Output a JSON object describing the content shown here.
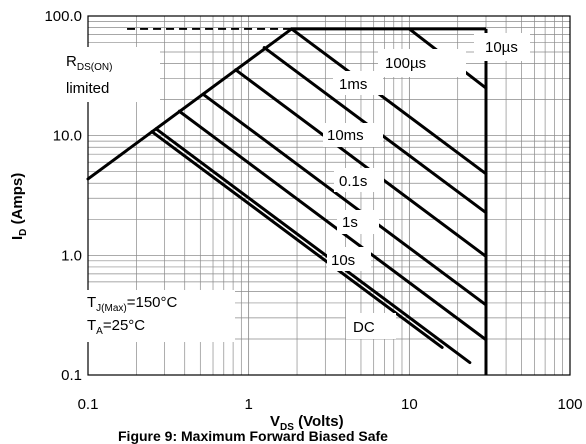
{
  "chart_data": {
    "type": "line",
    "title": "",
    "xscale": "log",
    "yscale": "log",
    "xlim": [
      0.1,
      100
    ],
    "ylim": [
      0.1,
      100
    ],
    "grid": true,
    "x_ticks": [
      {
        "value": 0.1,
        "label": "0.1"
      },
      {
        "value": 1,
        "label": "1"
      },
      {
        "value": 10,
        "label": "10"
      },
      {
        "value": 100,
        "label": "100"
      }
    ],
    "y_ticks": [
      {
        "value": 0.1,
        "label": "0.1"
      },
      {
        "value": 1,
        "label": "1.0"
      },
      {
        "value": 10,
        "label": "10.0"
      },
      {
        "value": 100,
        "label": "100.0"
      }
    ],
    "xlabel": {
      "main": "V",
      "sub": "DS",
      "rest": " (Volts)"
    },
    "ylabel": {
      "main": "I",
      "sub": "D",
      "rest": " (Amps)"
    },
    "rds_limit_line": {
      "x": [
        0.1,
        1.85
      ],
      "y": [
        4.35,
        78
      ]
    },
    "current_limit": {
      "y": 78,
      "x": [
        0.175,
        30
      ]
    },
    "voltage_limit": {
      "x": 30,
      "y": [
        0.1,
        78
      ]
    },
    "series": [
      {
        "name": "10µs",
        "x": [
          10.0,
          30
        ],
        "y": [
          78,
          25
        ]
      },
      {
        "name": "100µs",
        "x": [
          1.85,
          30
        ],
        "y": [
          78,
          4.8
        ]
      },
      {
        "name": "1ms",
        "x": [
          1.25,
          30
        ],
        "y": [
          54.5,
          2.27
        ]
      },
      {
        "name": "10ms",
        "x": [
          0.83,
          30
        ],
        "y": [
          35.5,
          0.98
        ]
      },
      {
        "name": "0.1s",
        "x": [
          0.52,
          30
        ],
        "y": [
          22.2,
          0.385
        ]
      },
      {
        "name": "1s",
        "x": [
          0.37,
          30
        ],
        "y": [
          16.0,
          0.197
        ]
      },
      {
        "name": "10s",
        "x": [
          0.265,
          23.8
        ],
        "y": [
          11.4,
          0.127
        ]
      },
      {
        "name": "DC",
        "x": [
          0.25,
          16.0
        ],
        "y": [
          10.8,
          0.17
        ]
      }
    ],
    "annotations": {
      "rds_main": "R",
      "rds_sub": "DS(ON)",
      "rds_line2": "limited",
      "tj_main": "T",
      "tj_sub": "J(Max)",
      "tj_rest": "=150°C",
      "ta_main": "T",
      "ta_sub": "A",
      "ta_rest": "=25°C"
    },
    "caption": "Figure 9: Maximum Forward Biased Safe"
  }
}
